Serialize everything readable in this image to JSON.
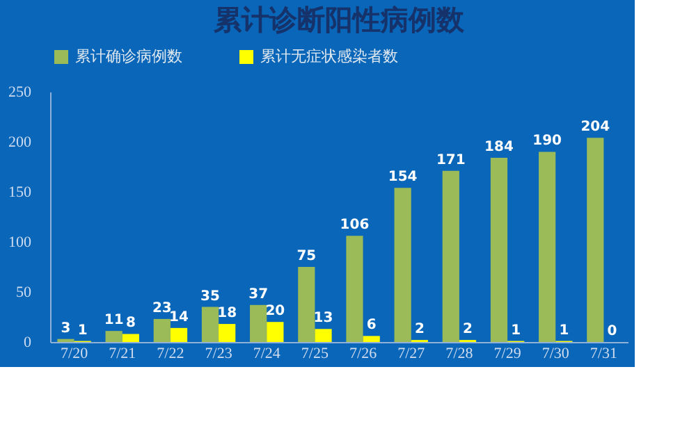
{
  "chart_data": {
    "type": "bar",
    "title": "累计诊断阳性病例数",
    "categories": [
      "7/20",
      "7/21",
      "7/22",
      "7/23",
      "7/24",
      "7/25",
      "7/26",
      "7/27",
      "7/28",
      "7/29",
      "7/30",
      "7/31"
    ],
    "series": [
      {
        "name": "累计确诊病例数",
        "color": "#9bbb59",
        "values": [
          3,
          11,
          23,
          35,
          37,
          75,
          106,
          154,
          171,
          184,
          190,
          204
        ]
      },
      {
        "name": "累计无症状感染者数",
        "color": "#ffff00",
        "values": [
          1,
          8,
          14,
          18,
          20,
          13,
          6,
          2,
          2,
          1,
          1,
          0
        ]
      }
    ],
    "ylim": [
      0,
      250
    ],
    "yticks": [
      0,
      50,
      100,
      150,
      200,
      250
    ],
    "grid": false,
    "legend": "top",
    "data_labels": true
  }
}
